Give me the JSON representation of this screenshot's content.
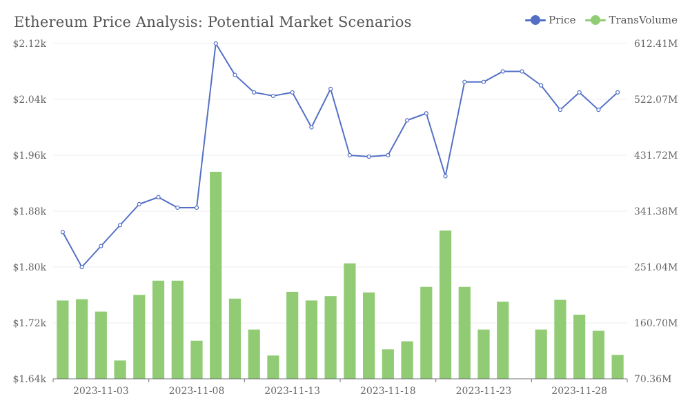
{
  "chart_data": {
    "type": "bar+line",
    "title": "Ethereum Price Analysis: Potential Market Scenarios",
    "x": [
      "2023-11-01",
      "2023-11-02",
      "2023-11-03",
      "2023-11-04",
      "2023-11-05",
      "2023-11-06",
      "2023-11-07",
      "2023-11-08",
      "2023-11-09",
      "2023-11-10",
      "2023-11-11",
      "2023-11-12",
      "2023-11-13",
      "2023-11-14",
      "2023-11-15",
      "2023-11-16",
      "2023-11-17",
      "2023-11-18",
      "2023-11-19",
      "2023-11-20",
      "2023-11-21",
      "2023-11-22",
      "2023-11-23",
      "2023-11-24",
      "2023-11-25",
      "2023-11-26",
      "2023-11-27",
      "2023-11-28",
      "2023-11-29",
      "2023-11-30"
    ],
    "x_tick_labels": [
      "2023-11-03",
      "2023-11-08",
      "2023-11-13",
      "2023-11-18",
      "2023-11-23",
      "2023-11-28"
    ],
    "series": [
      {
        "name": "Price",
        "type": "line",
        "axis": "left",
        "color": "#5470c6",
        "values": [
          1.85,
          1.8,
          1.83,
          1.86,
          1.89,
          1.9,
          1.885,
          1.885,
          2.12,
          2.075,
          2.05,
          2.045,
          2.05,
          2.0,
          2.055,
          1.96,
          1.958,
          1.96,
          2.01,
          2.02,
          1.93,
          2.065,
          2.065,
          2.08,
          2.08,
          2.06,
          2.025,
          2.05,
          2.025,
          2.05
        ]
      },
      {
        "name": "TransVolume",
        "type": "bar",
        "axis": "right",
        "color": "#91cc75",
        "values": [
          197,
          199,
          179,
          100,
          206,
          229,
          229,
          132,
          405,
          200,
          150,
          108,
          211,
          197,
          204,
          257,
          210,
          118,
          131,
          219,
          310,
          219,
          150,
          195,
          70,
          150,
          198,
          174,
          148,
          109
        ]
      }
    ],
    "y_left": {
      "ticks": [
        "$2.12k",
        "$2.04k",
        "$1.96k",
        "$1.88k",
        "$1.80k",
        "$1.72k",
        "$1.64k"
      ],
      "min": 1.64,
      "max": 2.12,
      "unit": "k USD"
    },
    "y_right": {
      "ticks": [
        "612.41M",
        "522.07M",
        "431.72M",
        "341.38M",
        "251.04M",
        "160.70M",
        "70.36M"
      ],
      "min": 70.36,
      "max": 612.41,
      "unit": "M"
    },
    "grid": true,
    "legend_position": "top-right"
  }
}
